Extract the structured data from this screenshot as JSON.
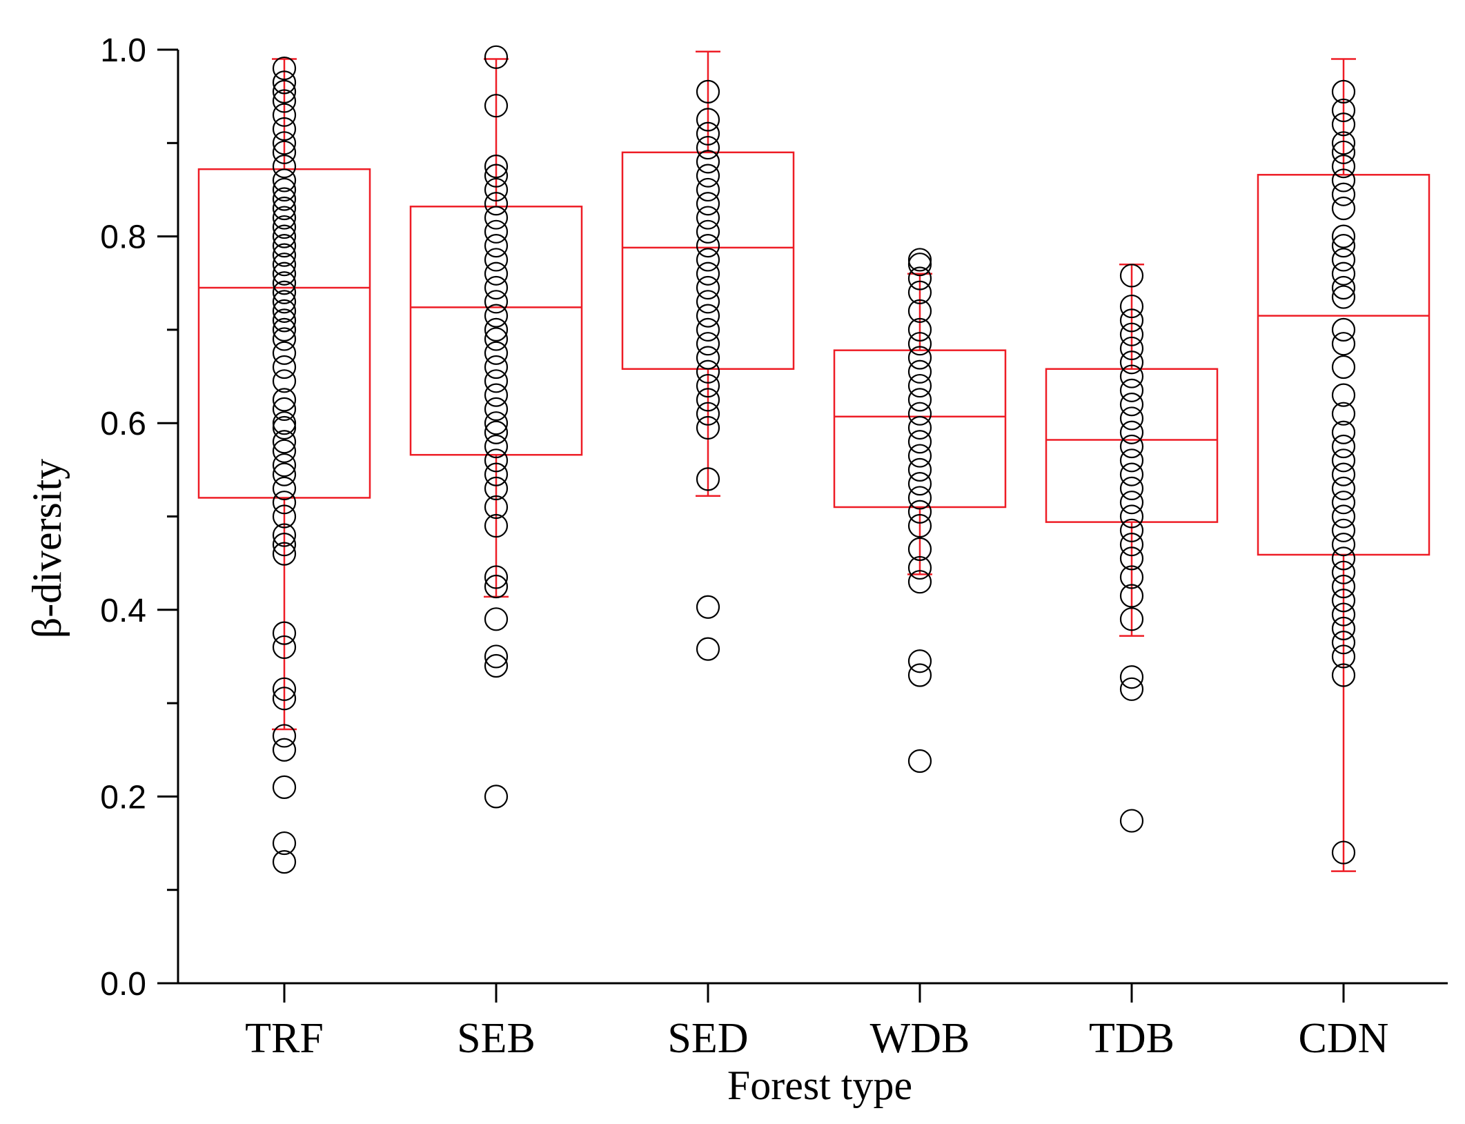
{
  "chart_data": {
    "type": "box",
    "xlabel": "Forest type",
    "ylabel": "β-diversity",
    "ylim": [
      0.0,
      1.0
    ],
    "yticks": [
      "0.0",
      "0.2",
      "0.4",
      "0.6",
      "0.8",
      "1.0"
    ],
    "categories": [
      "TRF",
      "SEB",
      "SED",
      "WDB",
      "TDB",
      "CDN"
    ],
    "box_color": "#ee1c25",
    "point_color": "#000000",
    "boxes": [
      {
        "name": "TRF",
        "q1": 0.52,
        "median": 0.745,
        "q3": 0.872,
        "whisker_low": 0.272,
        "whisker_high": 0.99
      },
      {
        "name": "SEB",
        "q1": 0.566,
        "median": 0.724,
        "q3": 0.832,
        "whisker_low": 0.414,
        "whisker_high": 0.99
      },
      {
        "name": "SED",
        "q1": 0.658,
        "median": 0.788,
        "q3": 0.89,
        "whisker_low": 0.522,
        "whisker_high": 0.998
      },
      {
        "name": "WDB",
        "q1": 0.51,
        "median": 0.607,
        "q3": 0.678,
        "whisker_low": 0.438,
        "whisker_high": 0.76
      },
      {
        "name": "TDB",
        "q1": 0.494,
        "median": 0.582,
        "q3": 0.658,
        "whisker_low": 0.372,
        "whisker_high": 0.77
      },
      {
        "name": "CDN",
        "q1": 0.459,
        "median": 0.715,
        "q3": 0.866,
        "whisker_low": 0.12,
        "whisker_high": 0.99
      }
    ],
    "points": [
      {
        "name": "TRF",
        "values": [
          0.13,
          0.15,
          0.21,
          0.25,
          0.265,
          0.305,
          0.315,
          0.36,
          0.375,
          0.46,
          0.47,
          0.48,
          0.5,
          0.515,
          0.53,
          0.545,
          0.555,
          0.57,
          0.58,
          0.595,
          0.6,
          0.615,
          0.625,
          0.645,
          0.66,
          0.675,
          0.69,
          0.7,
          0.71,
          0.72,
          0.73,
          0.74,
          0.75,
          0.76,
          0.77,
          0.78,
          0.79,
          0.8,
          0.81,
          0.82,
          0.83,
          0.84,
          0.85,
          0.86,
          0.875,
          0.89,
          0.9,
          0.915,
          0.93,
          0.945,
          0.955,
          0.965,
          0.98
        ]
      },
      {
        "name": "SEB",
        "values": [
          0.2,
          0.34,
          0.35,
          0.39,
          0.425,
          0.435,
          0.49,
          0.51,
          0.53,
          0.545,
          0.56,
          0.575,
          0.59,
          0.6,
          0.615,
          0.63,
          0.645,
          0.66,
          0.675,
          0.69,
          0.7,
          0.715,
          0.73,
          0.745,
          0.76,
          0.775,
          0.79,
          0.805,
          0.82,
          0.835,
          0.85,
          0.865,
          0.875,
          0.94,
          0.992
        ]
      },
      {
        "name": "SED",
        "values": [
          0.358,
          0.403,
          0.54,
          0.595,
          0.61,
          0.625,
          0.64,
          0.655,
          0.67,
          0.685,
          0.7,
          0.715,
          0.73,
          0.745,
          0.76,
          0.775,
          0.79,
          0.805,
          0.82,
          0.835,
          0.85,
          0.865,
          0.88,
          0.895,
          0.91,
          0.925,
          0.955
        ]
      },
      {
        "name": "WDB",
        "values": [
          0.238,
          0.33,
          0.345,
          0.43,
          0.445,
          0.465,
          0.49,
          0.505,
          0.52,
          0.535,
          0.55,
          0.565,
          0.58,
          0.595,
          0.61,
          0.625,
          0.64,
          0.655,
          0.67,
          0.685,
          0.7,
          0.72,
          0.74,
          0.755,
          0.77,
          0.775
        ]
      },
      {
        "name": "TDB",
        "values": [
          0.174,
          0.315,
          0.328,
          0.39,
          0.415,
          0.435,
          0.455,
          0.47,
          0.485,
          0.5,
          0.515,
          0.53,
          0.545,
          0.56,
          0.575,
          0.59,
          0.605,
          0.62,
          0.635,
          0.65,
          0.665,
          0.68,
          0.695,
          0.71,
          0.725,
          0.758
        ]
      },
      {
        "name": "CDN",
        "values": [
          0.14,
          0.33,
          0.35,
          0.365,
          0.38,
          0.395,
          0.41,
          0.425,
          0.44,
          0.455,
          0.47,
          0.485,
          0.5,
          0.515,
          0.53,
          0.545,
          0.56,
          0.575,
          0.59,
          0.61,
          0.63,
          0.66,
          0.685,
          0.7,
          0.735,
          0.745,
          0.76,
          0.775,
          0.79,
          0.8,
          0.83,
          0.845,
          0.86,
          0.875,
          0.89,
          0.9,
          0.92,
          0.935,
          0.955
        ]
      }
    ]
  }
}
